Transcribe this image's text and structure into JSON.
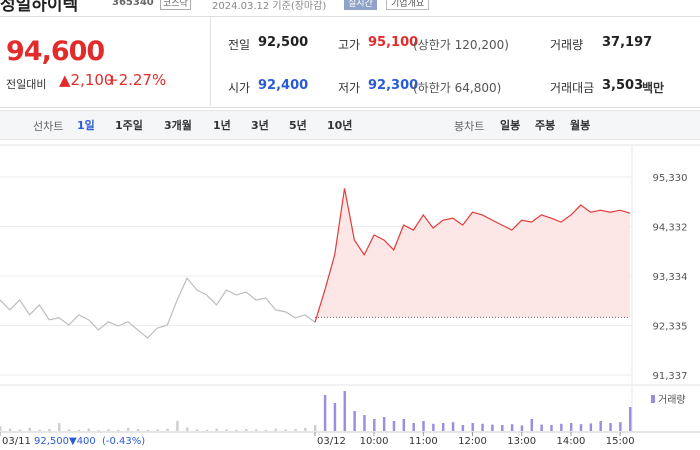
{
  "header": {
    "name": "성일하이텍",
    "code": "365340",
    "market": "코스닥",
    "date": "2024.03.12 기준(장마감)",
    "realtime": "실시간",
    "company_info": "기업개요"
  },
  "quote": {
    "price": "94,600",
    "change_label": "전일대비",
    "change": "▲2,100",
    "rate": "+2.27%"
  },
  "stats": [
    {
      "label": "전일",
      "value": "92,500",
      "color": "#222"
    },
    {
      "label": "고가",
      "value": "95,100",
      "extra": "(상한가 120,200)",
      "color": "#e22b2b"
    },
    {
      "label": "거래량",
      "value": "37,197",
      "color": "#222"
    },
    {
      "label": "시가",
      "value": "92,400",
      "color": "#2a5bd7"
    },
    {
      "label": "저가",
      "value": "92,300",
      "extra": "(하한가 64,800)",
      "color": "#2a5bd7"
    },
    {
      "label": "거래대금",
      "value": "3,503",
      "unit": "백만",
      "color": "#222"
    }
  ],
  "toolbar": {
    "line_label": "선차트",
    "line_periods": [
      "1일",
      "1주일",
      "3개월",
      "1년",
      "3년",
      "5년",
      "10년"
    ],
    "candle_label": "봉차트",
    "candle_periods": [
      "일봉",
      "주봉",
      "월봉"
    ]
  },
  "chart_data": {
    "type": "line",
    "xlim": [
      0,
      64
    ],
    "xticks": [
      {
        "value": 0,
        "label": "03/11"
      },
      {
        "value": 32,
        "label": "03/12"
      },
      {
        "value": 38,
        "label": "10:00"
      },
      {
        "value": 43,
        "label": "11:00"
      },
      {
        "value": 48,
        "label": "12:00"
      },
      {
        "value": 53,
        "label": "13:00"
      },
      {
        "value": 58,
        "label": "14:00"
      },
      {
        "value": 63,
        "label": "15:00"
      }
    ],
    "ylim": [
      91337,
      95330
    ],
    "yticks": [
      {
        "value": 95330,
        "label": "95,330"
      },
      {
        "value": 94332,
        "label": "94,332"
      },
      {
        "value": 93334,
        "label": "93,334"
      },
      {
        "value": 92335,
        "label": "92,335"
      },
      {
        "value": 91337,
        "label": "91,337"
      }
    ],
    "grid": true,
    "baseline": 92500,
    "series": [
      {
        "color": "#bdbdbd",
        "values": [
          92850,
          92650,
          92850,
          92550,
          92750,
          92450,
          92490,
          92345,
          92550,
          92450,
          92245,
          92410,
          92325,
          92410,
          92245,
          92085,
          92285,
          92345,
          92850,
          93290,
          93050,
          92950,
          92750,
          93050,
          92950,
          93010,
          92850,
          92890,
          92650,
          92610,
          92490,
          92550,
          92400,
          null,
          null,
          null,
          null,
          null,
          null,
          null,
          null,
          null,
          null,
          null,
          null,
          null,
          null,
          null,
          null,
          null,
          null,
          null,
          null,
          null,
          null,
          null,
          null,
          null,
          null,
          null,
          null,
          null,
          null,
          null,
          null
        ]
      },
      {
        "color": "#e33a3a",
        "fill": "#fde6e6",
        "values": [
          null,
          null,
          null,
          null,
          null,
          null,
          null,
          null,
          null,
          null,
          null,
          null,
          null,
          null,
          null,
          null,
          null,
          null,
          null,
          null,
          null,
          null,
          null,
          null,
          null,
          null,
          null,
          null,
          null,
          null,
          null,
          null,
          92400,
          93050,
          93760,
          95100,
          94060,
          93760,
          94160,
          94060,
          93860,
          94360,
          94260,
          94565,
          94300,
          94460,
          94500,
          94360,
          94620,
          94565,
          94460,
          94360,
          94260,
          94460,
          94420,
          94565,
          94500,
          94420,
          94565,
          94765,
          94620,
          94660,
          94620,
          94660,
          94600
        ]
      }
    ],
    "volume": {
      "name": "거래량",
      "color": "#9a8ee0",
      "values": [
        120,
        60,
        40,
        80,
        30,
        50,
        200,
        40,
        30,
        60,
        20,
        40,
        30,
        80,
        50,
        30,
        40,
        60,
        250,
        90,
        40,
        30,
        60,
        40,
        30,
        50,
        40,
        30,
        60,
        40,
        50,
        80,
        150,
        900,
        700,
        1000,
        500,
        400,
        300,
        350,
        250,
        300,
        200,
        250,
        180,
        200,
        220,
        150,
        200,
        180,
        160,
        150,
        170,
        140,
        300,
        160,
        150,
        180,
        200,
        170,
        190,
        250,
        200,
        220,
        600
      ]
    },
    "summary": {
      "price": "92,500",
      "change": "▼400",
      "rate": "(-0.43%)"
    }
  }
}
